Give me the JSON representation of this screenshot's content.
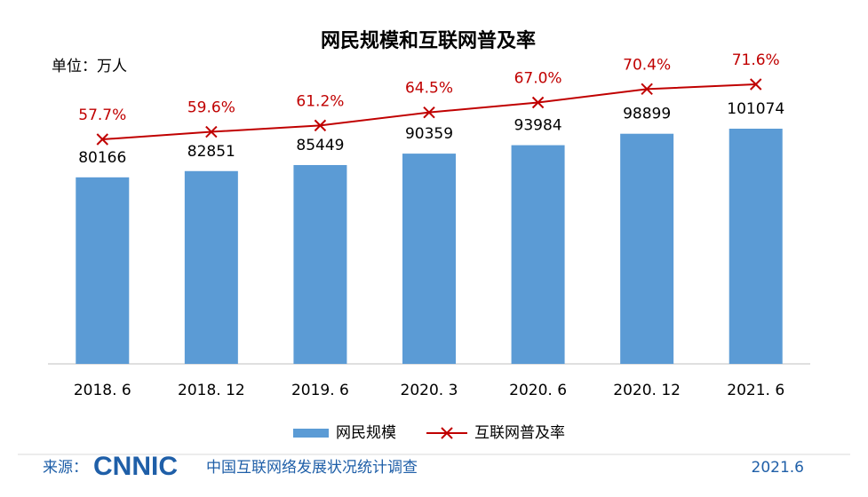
{
  "chart_data": {
    "type": "bar",
    "title": "网民规模和互联网普及率",
    "categories": [
      "2018. 6",
      "2018. 12",
      "2019. 6",
      "2020. 3",
      "2020. 6",
      "2020. 12",
      "2021. 6"
    ],
    "series": [
      {
        "name": "网民规模",
        "color": "#5b9bd5",
        "values": [
          80166,
          82851,
          85449,
          90359,
          93984,
          98899,
          101074
        ]
      },
      {
        "name": "互联网普及率",
        "color": "#c00000",
        "type": "line",
        "values": [
          57.7,
          59.6,
          61.2,
          64.5,
          67.0,
          70.4,
          71.6
        ],
        "value_labels": [
          "57.7%",
          "59.6%",
          "61.2%",
          "64.5%",
          "67.0%",
          "70.4%",
          "71.6%"
        ]
      }
    ],
    "legend": "bottom"
  },
  "unit": "单位：万人",
  "source": {
    "label": "来源：",
    "logo": "CNNIC",
    "name": "中国互联网络发展状况统计调查"
  },
  "date": "2021.6"
}
